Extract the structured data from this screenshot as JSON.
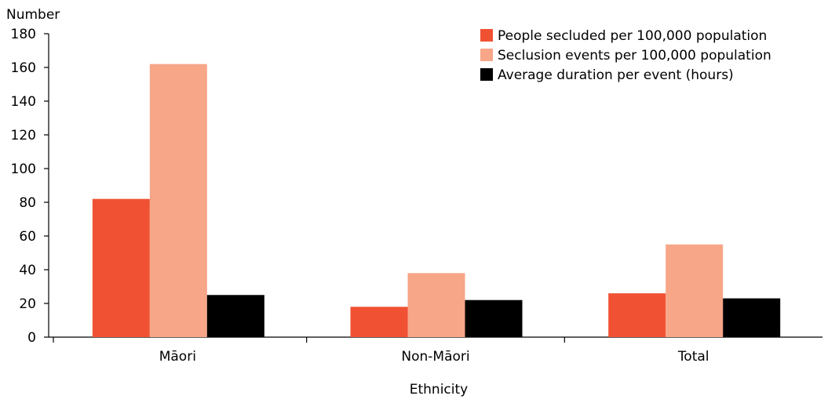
{
  "chart_data": {
    "type": "bar",
    "title": "",
    "ylabel": "Number",
    "xlabel": "Ethnicity",
    "ylim": [
      0,
      180
    ],
    "yticks": [
      0,
      20,
      40,
      60,
      80,
      100,
      120,
      140,
      160,
      180
    ],
    "categories": [
      "Māori",
      "Non-Māori",
      "Total"
    ],
    "series": [
      {
        "name": "People secluded per 100,000 population",
        "color": "#f05133",
        "values": [
          82,
          18,
          26
        ]
      },
      {
        "name": "Seclusion events per 100,000 population",
        "color": "#f7a688",
        "values": [
          162,
          38,
          55
        ]
      },
      {
        "name": "Average duration per event (hours)",
        "color": "#000000",
        "values": [
          25,
          22,
          23
        ]
      }
    ],
    "legend_position": "top-right",
    "grid": false
  }
}
